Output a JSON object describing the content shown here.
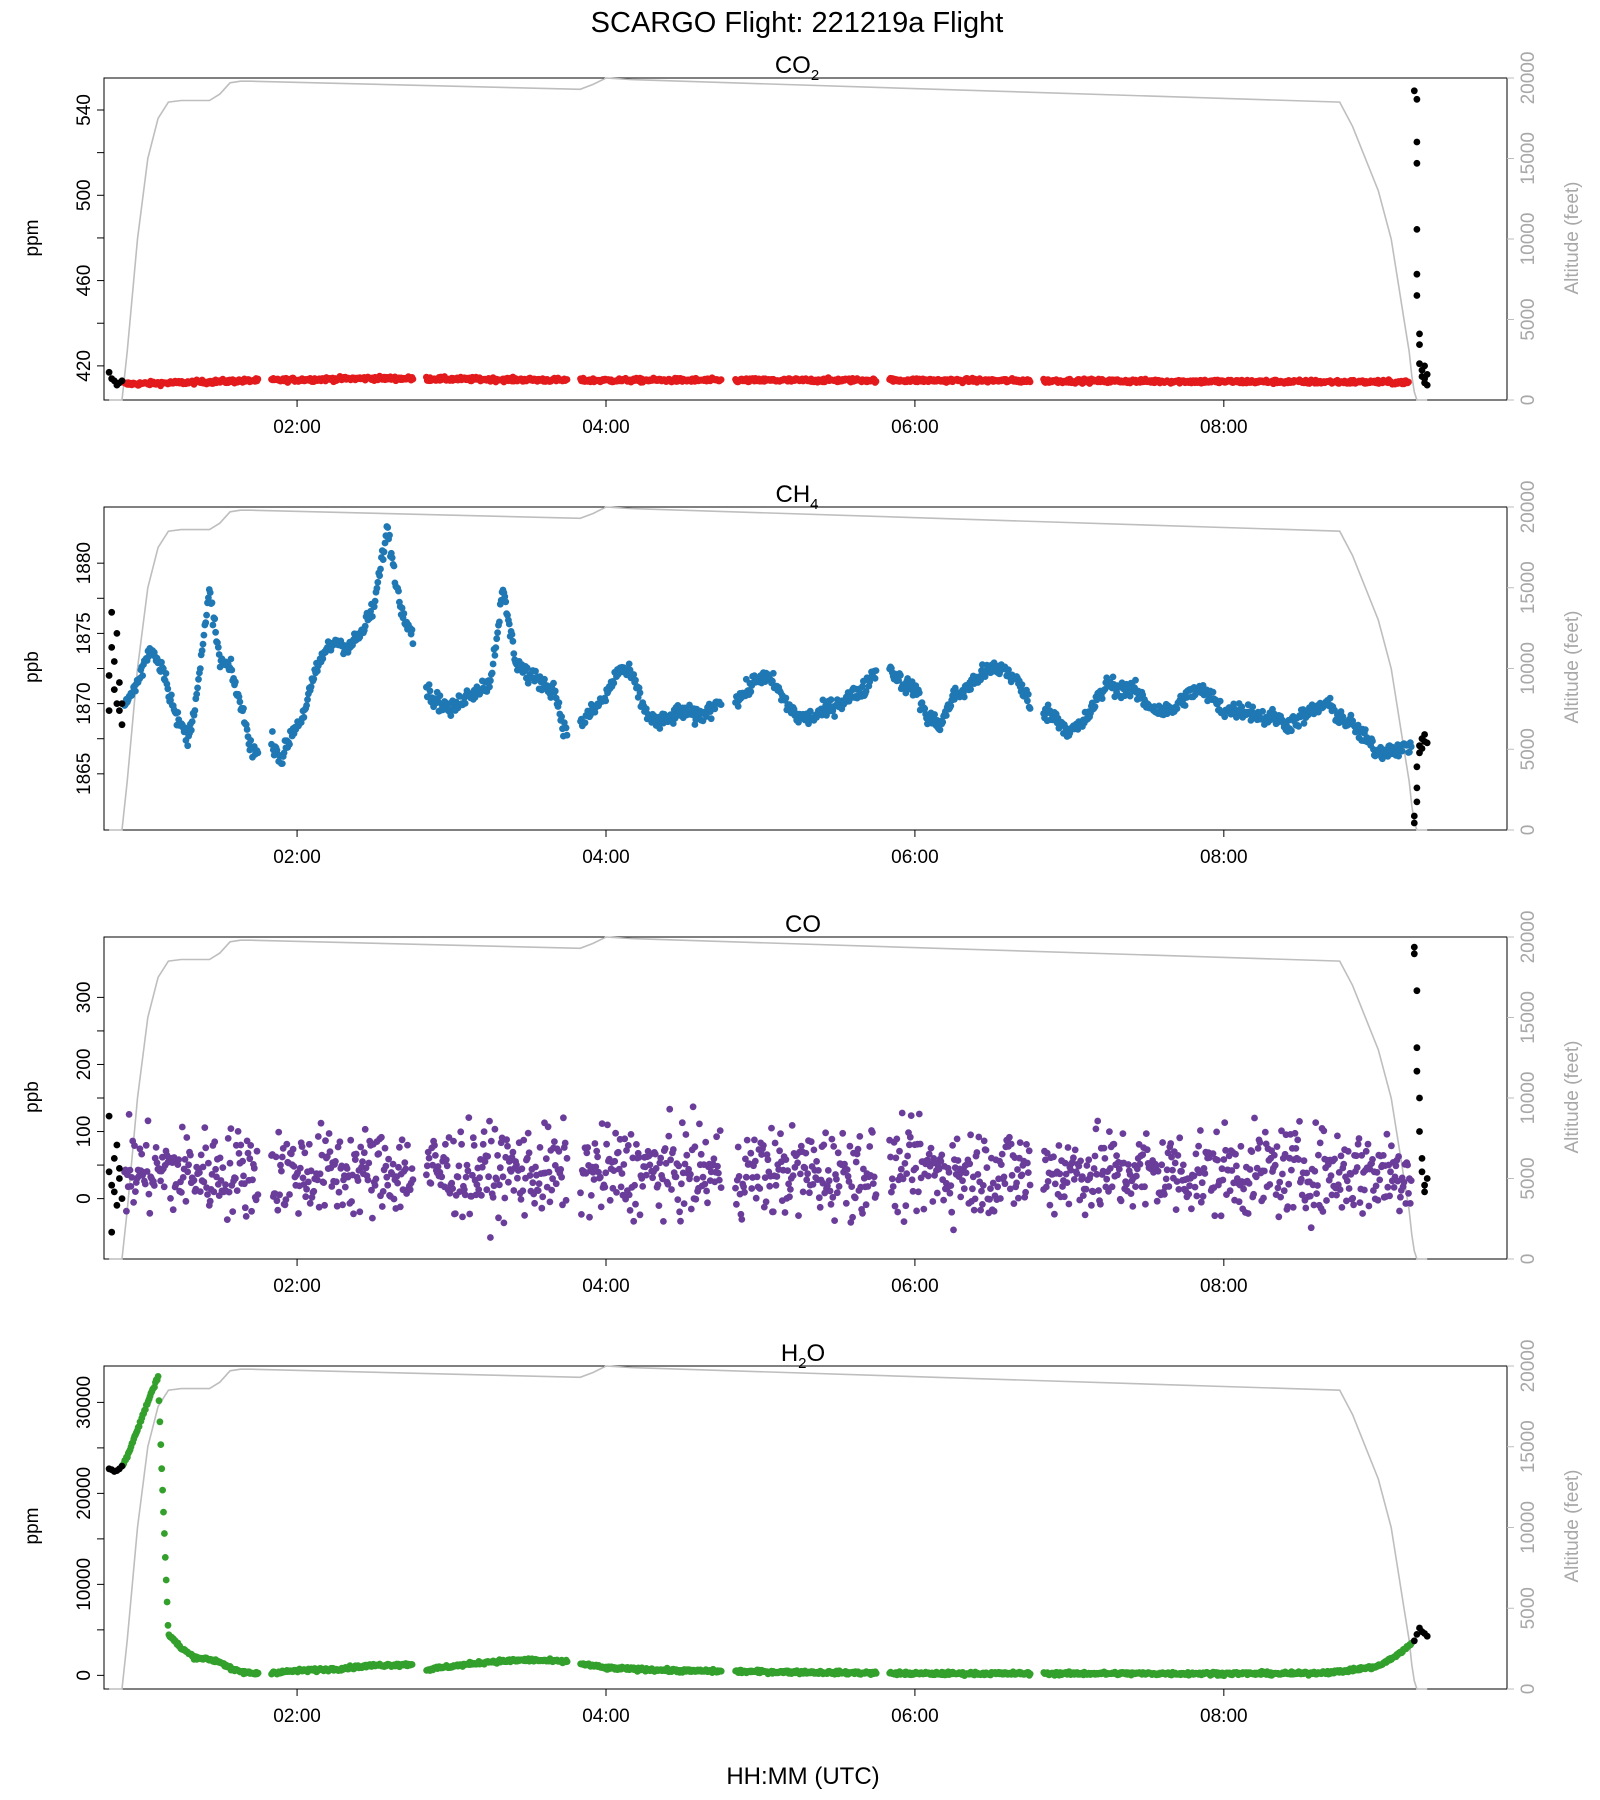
{
  "figure": {
    "title": "SCARGO Flight: 221219a  Flight",
    "xlabel": "HH:MM (UTC)"
  },
  "chart_data": [
    {
      "type": "scatter",
      "title_base": "CO",
      "title_subscript": "2",
      "ylabel": "ppm",
      "y2label": "Altitude (feet)",
      "xlim": [
        "00:45",
        "09:50"
      ],
      "x_ticks": [
        "02:00",
        "04:00",
        "06:00",
        "08:00"
      ],
      "ylim": [
        404,
        555
      ],
      "y_ticks": [
        420,
        460,
        500,
        540
      ],
      "y2lim": [
        0,
        20000
      ],
      "y2_ticks": [
        0,
        5000,
        10000,
        15000,
        20000
      ],
      "grid": false,
      "colors": {
        "main": "#e31a1c",
        "ground": "#000000",
        "altitude": "#bebebe"
      },
      "series": [
        {
          "role": "flight",
          "x": [
            "00:53",
            "01:10",
            "01:40",
            "02:00",
            "02:30",
            "03:00",
            "03:30",
            "03:50",
            "04:20",
            "05:00",
            "05:40",
            "06:10",
            "06:50",
            "07:30",
            "08:10",
            "08:40",
            "09:12"
          ],
          "y": [
            411.5,
            412.0,
            413.0,
            413.5,
            414.2,
            413.8,
            413.5,
            413.2,
            413.3,
            413.2,
            413.3,
            413.2,
            413.0,
            412.8,
            412.6,
            412.5,
            412.3
          ],
          "noise": 0.8
        },
        {
          "role": "ground",
          "x": [
            "00:47",
            "00:48",
            "00:49",
            "00:50",
            "00:51",
            "00:52",
            "09:14",
            "09:15",
            "09:15",
            "09:15",
            "09:15",
            "09:15",
            "09:15",
            "09:16",
            "09:16",
            "09:16",
            "09:17",
            "09:17",
            "09:18",
            "09:18",
            "09:18",
            "09:19",
            "09:19"
          ],
          "y": [
            417,
            414,
            413,
            411,
            412,
            413,
            549,
            545,
            525,
            515,
            484,
            463,
            453,
            435,
            430,
            421,
            418,
            415,
            412,
            420,
            414,
            416,
            411
          ]
        }
      ],
      "gaps": [
        [
          "01:45",
          "01:50"
        ],
        [
          "02:45",
          "02:50"
        ],
        [
          "03:45",
          "03:50"
        ],
        [
          "04:45",
          "04:50"
        ],
        [
          "05:45",
          "05:50"
        ],
        [
          "06:45",
          "06:50"
        ]
      ]
    },
    {
      "type": "scatter",
      "title_base": "CH",
      "title_subscript": "4",
      "ylabel": "ppb",
      "y2label": "Altitude (feet)",
      "xlim": [
        "00:45",
        "09:50"
      ],
      "x_ticks": [
        "02:00",
        "04:00",
        "06:00",
        "08:00"
      ],
      "ylim": [
        1861,
        1884
      ],
      "y_ticks": [
        1865,
        1870,
        1875,
        1880
      ],
      "y2lim": [
        0,
        20000
      ],
      "y2_ticks": [
        0,
        5000,
        10000,
        15000,
        20000
      ],
      "grid": false,
      "colors": {
        "main": "#1f78b4",
        "ground": "#000000",
        "altitude": "#bebebe"
      },
      "series": [
        {
          "role": "flight",
          "x": [
            "00:53",
            "00:58",
            "01:03",
            "01:08",
            "01:13",
            "01:18",
            "01:22",
            "01:26",
            "01:30",
            "01:34",
            "01:38",
            "01:42",
            "01:46",
            "01:50",
            "01:54",
            "01:58",
            "02:02",
            "02:06",
            "02:10",
            "02:15",
            "02:20",
            "02:25",
            "02:30",
            "02:35",
            "02:40",
            "02:44",
            "02:48",
            "02:52",
            "02:56",
            "03:00",
            "03:05",
            "03:10",
            "03:15",
            "03:20",
            "03:25",
            "03:30",
            "03:35",
            "03:40",
            "03:44",
            "03:50",
            "03:55",
            "04:00",
            "04:05",
            "04:10",
            "04:15",
            "04:20",
            "04:25",
            "04:30",
            "04:35",
            "04:40",
            "04:45",
            "04:50",
            "04:55",
            "05:00",
            "05:05",
            "05:10",
            "05:15",
            "05:20",
            "05:25",
            "05:30",
            "05:35",
            "05:40",
            "05:45",
            "05:50",
            "05:55",
            "06:00",
            "06:05",
            "06:10",
            "06:15",
            "06:20",
            "06:25",
            "06:30",
            "06:35",
            "06:40",
            "06:45",
            "06:50",
            "06:55",
            "07:00",
            "07:05",
            "07:10",
            "07:15",
            "07:20",
            "07:25",
            "07:30",
            "07:35",
            "07:40",
            "07:45",
            "07:50",
            "07:55",
            "08:00",
            "08:05",
            "08:10",
            "08:15",
            "08:20",
            "08:25",
            "08:30",
            "08:35",
            "08:40",
            "08:45",
            "08:50",
            "08:55",
            "09:00",
            "09:05",
            "09:10",
            "09:13"
          ],
          "y": [
            1869.8,
            1871.5,
            1874.0,
            1872.5,
            1869.0,
            1867.5,
            1872.0,
            1878.0,
            1873.0,
            1872.5,
            1870.0,
            1867.0,
            1866.0,
            1867.5,
            1866.0,
            1868.0,
            1869.0,
            1871.5,
            1873.5,
            1874.5,
            1874.0,
            1875.0,
            1877.0,
            1882.5,
            1877.0,
            1875.5,
            1872.0,
            1870.5,
            1870.0,
            1869.5,
            1870.5,
            1871.0,
            1871.5,
            1878.0,
            1873.0,
            1872.0,
            1871.5,
            1871.0,
            1868.0,
            1868.5,
            1869.5,
            1870.5,
            1872.5,
            1872.0,
            1869.5,
            1868.5,
            1869.0,
            1869.5,
            1869.0,
            1869.5,
            1870.5,
            1870.0,
            1871.0,
            1872.0,
            1871.5,
            1870.0,
            1869.0,
            1869.0,
            1869.5,
            1870.0,
            1870.5,
            1871.0,
            1872.5,
            1872.5,
            1871.5,
            1871.0,
            1869.0,
            1868.5,
            1870.5,
            1871.0,
            1872.0,
            1872.5,
            1872.5,
            1871.5,
            1870.0,
            1869.5,
            1869.0,
            1868.0,
            1868.5,
            1870.0,
            1871.5,
            1871.0,
            1871.0,
            1870.0,
            1869.5,
            1869.5,
            1870.5,
            1871.0,
            1870.5,
            1869.5,
            1869.5,
            1869.5,
            1869.0,
            1869.0,
            1868.5,
            1869.0,
            1869.5,
            1870.0,
            1869.0,
            1868.5,
            1867.5,
            1866.5,
            1866.8,
            1866.8,
            1867.0
          ],
          "noise": 0.5
        },
        {
          "role": "ground",
          "x": [
            "00:47",
            "00:47",
            "00:48",
            "00:48",
            "00:49",
            "00:49",
            "00:50",
            "00:50",
            "00:51",
            "00:51",
            "00:52",
            "00:52",
            "09:14",
            "09:14",
            "09:15",
            "09:15",
            "09:15",
            "09:16",
            "09:16",
            "09:17",
            "09:17",
            "09:18",
            "09:18",
            "09:19"
          ],
          "y": [
            1869.5,
            1872,
            1874,
            1876.5,
            1871,
            1873,
            1870,
            1875,
            1869.5,
            1871.5,
            1870,
            1868.5,
            1861.5,
            1862,
            1863,
            1864,
            1865.5,
            1866.5,
            1867,
            1867.5,
            1866.8,
            1867.3,
            1867.8,
            1867.2
          ]
        }
      ],
      "gaps": [
        [
          "01:45",
          "01:50"
        ],
        [
          "02:45",
          "02:50"
        ],
        [
          "03:45",
          "03:50"
        ],
        [
          "04:45",
          "04:50"
        ],
        [
          "05:45",
          "05:50"
        ],
        [
          "06:45",
          "06:50"
        ]
      ]
    },
    {
      "type": "scatter",
      "title_base": "CO",
      "title_subscript": "",
      "ylabel": "ppb",
      "y2label": "Altitude (feet)",
      "xlim": [
        "00:45",
        "09:50"
      ],
      "x_ticks": [
        "02:00",
        "04:00",
        "06:00",
        "08:00"
      ],
      "ylim": [
        -90,
        390
      ],
      "y_ticks": [
        0,
        100,
        200,
        300
      ],
      "y2lim": [
        0,
        20000
      ],
      "y2_ticks": [
        0,
        5000,
        10000,
        15000,
        20000
      ],
      "grid": false,
      "colors": {
        "main": "#6a3d9a",
        "ground": "#000000",
        "altitude": "#bebebe"
      },
      "series": [
        {
          "role": "flight",
          "x": [
            "00:53",
            "01:45",
            "02:45",
            "03:45",
            "04:45",
            "05:45",
            "06:45",
            "07:45",
            "09:13"
          ],
          "y": [
            40,
            40,
            40,
            40,
            40,
            40,
            40,
            40,
            40
          ],
          "noise": 55
        },
        {
          "role": "ground",
          "x": [
            "00:47",
            "00:47",
            "00:48",
            "00:48",
            "00:49",
            "00:49",
            "00:50",
            "00:50",
            "00:51",
            "00:51",
            "00:52",
            "09:14",
            "09:14",
            "09:15",
            "09:15",
            "09:15",
            "09:16",
            "09:16",
            "09:17",
            "09:17",
            "09:18",
            "09:18",
            "09:19"
          ],
          "y": [
            123,
            40,
            -50,
            20,
            60,
            10,
            80,
            -10,
            30,
            45,
            0,
            375,
            365,
            310,
            225,
            190,
            150,
            100,
            60,
            40,
            20,
            10,
            30
          ]
        }
      ],
      "gaps": [
        [
          "01:45",
          "01:50"
        ],
        [
          "02:45",
          "02:50"
        ],
        [
          "03:45",
          "03:50"
        ],
        [
          "04:45",
          "04:50"
        ],
        [
          "05:45",
          "05:50"
        ],
        [
          "06:45",
          "06:50"
        ]
      ]
    },
    {
      "type": "scatter",
      "title_base": "H",
      "title_subscript": "2",
      "title_suffix": "O",
      "ylabel": "ppm",
      "y2label": "Altitude (feet)",
      "xlim": [
        "00:45",
        "09:50"
      ],
      "x_ticks": [
        "02:00",
        "04:00",
        "06:00",
        "08:00"
      ],
      "ylim": [
        -1500,
        34000
      ],
      "y_ticks": [
        0,
        10000,
        20000,
        30000
      ],
      "y2lim": [
        0,
        20000
      ],
      "y2_ticks": [
        0,
        5000,
        10000,
        15000,
        20000
      ],
      "grid": false,
      "colors": {
        "main": "#33a02c",
        "ground": "#000000",
        "altitude": "#bebebe"
      },
      "series": [
        {
          "role": "flight",
          "x": [
            "00:52",
            "00:54",
            "00:56",
            "00:58",
            "01:00",
            "01:02",
            "01:04",
            "01:06",
            "01:10",
            "01:15",
            "01:20",
            "01:25",
            "01:30",
            "01:35",
            "01:40",
            "01:45",
            "01:50",
            "02:00",
            "02:15",
            "02:30",
            "02:45",
            "02:50",
            "03:00",
            "03:15",
            "03:30",
            "03:45",
            "03:50",
            "04:00",
            "04:30",
            "05:00",
            "05:30",
            "06:00",
            "06:30",
            "07:00",
            "07:30",
            "08:00",
            "08:30",
            "08:45",
            "09:00",
            "09:05",
            "09:10",
            "09:13"
          ],
          "y": [
            23000,
            24000,
            25500,
            27000,
            28500,
            30000,
            31500,
            32800,
            4500,
            3000,
            2000,
            1800,
            1500,
            600,
            300,
            200,
            300,
            500,
            700,
            1100,
            1200,
            600,
            1000,
            1500,
            1700,
            1500,
            1300,
            800,
            500,
            400,
            300,
            200,
            200,
            200,
            200,
            200,
            200,
            400,
            1000,
            1800,
            2800,
            3500
          ],
          "noise": 150
        },
        {
          "role": "ground",
          "x": [
            "00:47",
            "00:48",
            "00:49",
            "00:50",
            "00:51",
            "00:52",
            "09:14",
            "09:15",
            "09:16",
            "09:17",
            "09:18",
            "09:19"
          ],
          "y": [
            22700,
            22600,
            22400,
            22500,
            22700,
            23000,
            3800,
            4500,
            5200,
            4800,
            4600,
            4300
          ]
        }
      ],
      "gaps": [
        [
          "01:45",
          "01:50"
        ],
        [
          "02:45",
          "02:50"
        ],
        [
          "03:45",
          "03:50"
        ],
        [
          "04:45",
          "04:50"
        ],
        [
          "05:45",
          "05:50"
        ],
        [
          "06:45",
          "06:50"
        ]
      ]
    }
  ],
  "altitude_profile": {
    "x": [
      "00:47",
      "00:52",
      "00:54",
      "00:58",
      "01:02",
      "01:06",
      "01:10",
      "01:15",
      "01:20",
      "01:26",
      "01:30",
      "01:34",
      "01:38",
      "01:42",
      "03:50",
      "03:55",
      "04:00",
      "04:10",
      "08:45",
      "08:50",
      "09:00",
      "09:05",
      "09:08",
      "09:10",
      "09:12",
      "09:13",
      "09:14",
      "09:15",
      "09:19"
    ],
    "y": [
      0,
      0,
      3000,
      10000,
      15000,
      17500,
      18500,
      18600,
      18600,
      18600,
      19000,
      19700,
      19800,
      19800,
      19300,
      19600,
      20000,
      19900,
      18500,
      17000,
      13000,
      10000,
      7000,
      5000,
      3000,
      1500,
      500,
      0,
      0
    ]
  }
}
